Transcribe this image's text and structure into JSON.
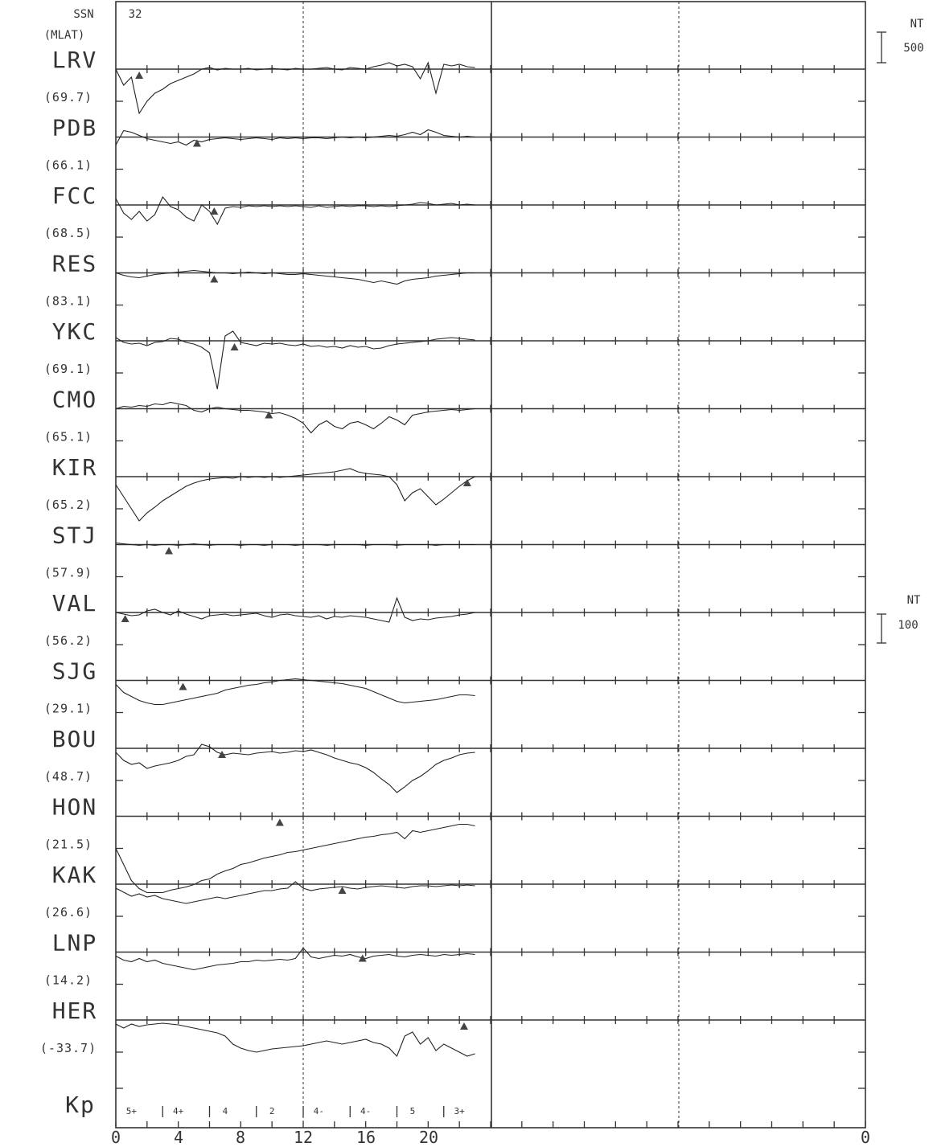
{
  "chart_data": {
    "type": "line",
    "ssn_label": "SSN",
    "ssn_value": "32",
    "mlat_label": "(MLAT)",
    "xlabel": "",
    "ylabel": "",
    "x_ticks": [
      "0",
      "4",
      "8",
      "12",
      "16",
      "20"
    ],
    "x_end_label": "0",
    "xlim": [
      0,
      48
    ],
    "scale_high": {
      "unit": "NT",
      "value": "500"
    },
    "scale_low": {
      "unit": "NT",
      "value": "100"
    },
    "kp_label": "Kp",
    "kp_values": [
      {
        "t": 1,
        "label": "5+"
      },
      {
        "t": 4,
        "label": "4+"
      },
      {
        "t": 7,
        "label": "4"
      },
      {
        "t": 10,
        "label": "2"
      },
      {
        "t": 13,
        "label": "4-"
      },
      {
        "t": 16,
        "label": "4-"
      },
      {
        "t": 19,
        "label": "5"
      },
      {
        "t": 22,
        "label": "3+"
      }
    ],
    "stations": [
      {
        "code": "LRV",
        "mlat": "(69.7)",
        "marker_t": 1.5,
        "samples": [
          0,
          -20,
          -10,
          -55,
          -40,
          -30,
          -25,
          -18,
          -14,
          -10,
          -6,
          0,
          2,
          -1,
          1,
          0,
          0,
          1,
          -1,
          0,
          1,
          0,
          -1,
          1,
          0,
          0,
          1,
          2,
          0,
          -1,
          2,
          1,
          0,
          3,
          5,
          8,
          4,
          6,
          3,
          -12,
          8,
          -30,
          6,
          4,
          6,
          3,
          2
        ]
      },
      {
        "code": "PDB",
        "mlat": "(66.1)",
        "marker_t": 5.2,
        "samples": [
          -10,
          8,
          6,
          2,
          -2,
          -4,
          -6,
          -8,
          -6,
          -10,
          -4,
          -6,
          -3,
          -2,
          -1,
          -2,
          -3,
          -2,
          -1,
          -2,
          -3,
          -1,
          -2,
          -1,
          -2,
          -1,
          -1,
          -2,
          -1,
          0,
          -1,
          0,
          -1,
          0,
          1,
          2,
          1,
          3,
          6,
          3,
          9,
          6,
          2,
          1,
          0,
          1,
          0
        ]
      },
      {
        "code": "FCC",
        "mlat": "(68.5)",
        "marker_t": 6.3,
        "samples": [
          8,
          -10,
          -18,
          -8,
          -20,
          -12,
          10,
          -2,
          -6,
          -15,
          -20,
          0,
          -8,
          -24,
          -4,
          -2,
          -3,
          -1,
          -2,
          -1,
          -2,
          -1,
          -2,
          -1,
          -2,
          -3,
          -1,
          -3,
          -2,
          -1,
          -2,
          -1,
          -1,
          -2,
          -1,
          -2,
          -1,
          0,
          1,
          3,
          2,
          0,
          1,
          2,
          0,
          1,
          0
        ]
      },
      {
        "code": "RES",
        "mlat": "(83.1)",
        "marker_t": 6.3,
        "samples": [
          0,
          -3,
          -5,
          -6,
          -4,
          -2,
          -1,
          0,
          1,
          2,
          3,
          2,
          1,
          0,
          0,
          -1,
          0,
          1,
          0,
          -1,
          0,
          -1,
          -2,
          -2,
          -1,
          -2,
          -3,
          -4,
          -5,
          -6,
          -7,
          -8,
          -10,
          -12,
          -10,
          -12,
          -14,
          -10,
          -8,
          -7,
          -6,
          -4,
          -3,
          -2,
          -1,
          0,
          0
        ]
      },
      {
        "code": "YKC",
        "mlat": "(69.1)",
        "marker_t": 7.6,
        "samples": [
          4,
          -2,
          -4,
          -3,
          -6,
          -2,
          -1,
          3,
          2,
          -2,
          -4,
          -8,
          -15,
          -60,
          6,
          12,
          -2,
          -4,
          -6,
          -3,
          -4,
          -3,
          -5,
          -6,
          -4,
          -7,
          -6,
          -8,
          -7,
          -9,
          -6,
          -8,
          -7,
          -10,
          -9,
          -6,
          -4,
          -3,
          -2,
          -1,
          0,
          2,
          3,
          4,
          3,
          2,
          1
        ]
      },
      {
        "code": "CMO",
        "mlat": "(65.1)",
        "marker_t": 9.8,
        "samples": [
          0,
          3,
          2,
          4,
          3,
          6,
          5,
          8,
          6,
          4,
          -2,
          -4,
          0,
          2,
          0,
          -1,
          -2,
          -2,
          -3,
          -4,
          -6,
          -5,
          -8,
          -12,
          -18,
          -30,
          -20,
          -15,
          -22,
          -25,
          -18,
          -16,
          -20,
          -25,
          -18,
          -10,
          -14,
          -20,
          -8,
          -6,
          -4,
          -3,
          -2,
          -1,
          -2,
          -1,
          0
        ]
      },
      {
        "code": "KIR",
        "mlat": "(65.2)",
        "marker_t": 22.5,
        "samples": [
          -10,
          -25,
          -40,
          -55,
          -45,
          -38,
          -30,
          -24,
          -18,
          -12,
          -8,
          -5,
          -3,
          -2,
          -1,
          -2,
          0,
          -1,
          0,
          -1,
          0,
          -1,
          0,
          1,
          2,
          3,
          4,
          5,
          6,
          8,
          10,
          6,
          4,
          3,
          2,
          0,
          -10,
          -30,
          -20,
          -15,
          -25,
          -35,
          -28,
          -20,
          -12,
          -5,
          0
        ]
      },
      {
        "code": "STJ",
        "mlat": "(57.9)",
        "marker_t": 3.4,
        "samples": [
          2,
          1,
          0,
          -1,
          0,
          -1,
          0,
          0,
          -1,
          0,
          1,
          0,
          -1,
          0,
          0,
          0,
          -1,
          0,
          0,
          -1,
          0,
          0,
          0,
          -1,
          0,
          0,
          0,
          -1,
          0,
          0,
          0,
          0,
          -1,
          0,
          0,
          0,
          -1,
          0,
          0,
          0,
          0,
          -1,
          0,
          0,
          0,
          0,
          0
        ]
      },
      {
        "code": "VAL",
        "mlat": "(56.2)",
        "marker_t": 0.6,
        "samples": [
          0,
          -2,
          -4,
          -3,
          2,
          4,
          0,
          -3,
          2,
          -2,
          -5,
          -8,
          -4,
          -3,
          -2,
          -4,
          -3,
          -2,
          -1,
          -4,
          -6,
          -3,
          -2,
          -4,
          -5,
          -6,
          -4,
          -8,
          -5,
          -6,
          -4,
          -5,
          -6,
          -8,
          -10,
          -12,
          18,
          -6,
          -10,
          -8,
          -9,
          -7,
          -6,
          -5,
          -3,
          -2,
          0
        ]
      },
      {
        "code": "SJG",
        "mlat": "(29.1)",
        "marker_t": 4.3,
        "samples": [
          -5,
          -15,
          -20,
          -25,
          -28,
          -30,
          -30,
          -28,
          -26,
          -24,
          -22,
          -20,
          -18,
          -16,
          -12,
          -10,
          -8,
          -6,
          -5,
          -3,
          -2,
          0,
          1,
          2,
          1,
          0,
          -1,
          -2,
          -3,
          -4,
          -6,
          -8,
          -10,
          -14,
          -18,
          -22,
          -26,
          -28,
          -27,
          -26,
          -25,
          -24,
          -22,
          -20,
          -18,
          -18,
          -19
        ]
      },
      {
        "code": "BOU",
        "mlat": "(48.7)",
        "marker_t": 6.8,
        "samples": [
          -5,
          -15,
          -20,
          -18,
          -25,
          -22,
          -20,
          -18,
          -15,
          -10,
          -8,
          5,
          2,
          -5,
          -8,
          -6,
          -7,
          -8,
          -6,
          -5,
          -4,
          -6,
          -5,
          -3,
          -4,
          -2,
          -5,
          -8,
          -12,
          -15,
          -18,
          -20,
          -24,
          -30,
          -38,
          -45,
          -55,
          -48,
          -40,
          -35,
          -28,
          -20,
          -15,
          -12,
          -8,
          -6,
          -5
        ]
      },
      {
        "code": "HON",
        "mlat": "(21.5)",
        "marker_t": 10.5,
        "samples": [
          -40,
          -60,
          -80,
          -90,
          -95,
          -95,
          -95,
          -92,
          -90,
          -88,
          -85,
          -80,
          -78,
          -72,
          -68,
          -65,
          -60,
          -58,
          -55,
          -52,
          -50,
          -48,
          -45,
          -44,
          -42,
          -40,
          -38,
          -36,
          -34,
          -32,
          -30,
          -28,
          -26,
          -25,
          -23,
          -22,
          -20,
          -28,
          -18,
          -20,
          -18,
          -16,
          -14,
          -12,
          -10,
          -10,
          -12
        ]
      },
      {
        "code": "KAK",
        "mlat": "(26.6)",
        "marker_t": 14.5,
        "samples": [
          -5,
          -10,
          -15,
          -12,
          -16,
          -14,
          -18,
          -20,
          -22,
          -24,
          -22,
          -20,
          -18,
          -16,
          -18,
          -16,
          -14,
          -12,
          -10,
          -8,
          -8,
          -6,
          -5,
          3,
          -5,
          -8,
          -6,
          -5,
          -4,
          -3,
          -5,
          -6,
          -4,
          -3,
          -2,
          -3,
          -4,
          -5,
          -3,
          -2,
          -2,
          -3,
          -2,
          -1,
          -2,
          -1,
          -2
        ]
      },
      {
        "code": "LNP",
        "mlat": "(14.2)",
        "marker_t": 15.8,
        "samples": [
          -5,
          -10,
          -12,
          -8,
          -12,
          -10,
          -14,
          -16,
          -18,
          -20,
          -22,
          -20,
          -18,
          -16,
          -15,
          -14,
          -12,
          -12,
          -10,
          -11,
          -10,
          -9,
          -10,
          -8,
          5,
          -6,
          -8,
          -6,
          -4,
          -5,
          -3,
          -6,
          -8,
          -5,
          -4,
          -3,
          -5,
          -6,
          -4,
          -3,
          -4,
          -5,
          -3,
          -4,
          -3,
          -2,
          -3
        ]
      },
      {
        "code": "HER",
        "mlat": "(-33.7)",
        "marker_t": 22.3,
        "samples": [
          -5,
          -10,
          -5,
          -8,
          -6,
          -5,
          -4,
          -5,
          -6,
          -8,
          -10,
          -12,
          -14,
          -16,
          -20,
          -30,
          -35,
          -38,
          -40,
          -38,
          -36,
          -35,
          -34,
          -33,
          -32,
          -30,
          -28,
          -26,
          -28,
          -30,
          -28,
          -26,
          -24,
          -28,
          -30,
          -35,
          -45,
          -20,
          -15,
          -30,
          -22,
          -38,
          -30,
          -35,
          -40,
          -45,
          -42
        ]
      }
    ]
  }
}
